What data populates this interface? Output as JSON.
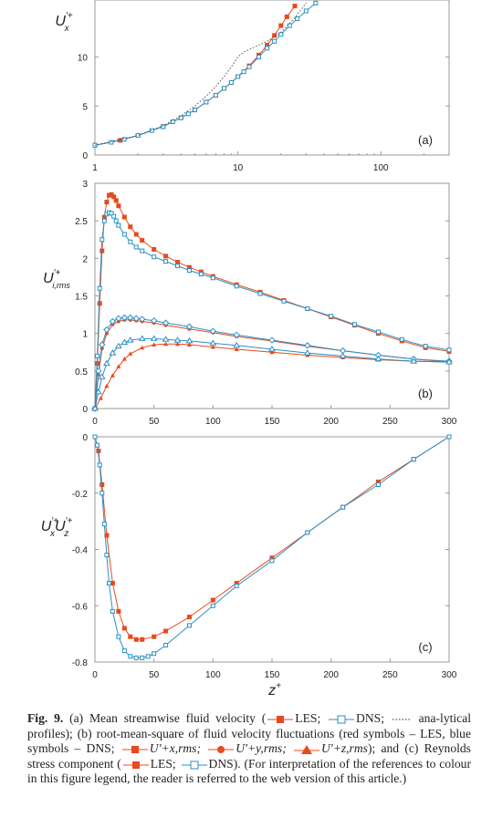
{
  "colors": {
    "les": "#e8491d",
    "dns": "#2a8fc4",
    "analytical": "#555555",
    "frame": "#999999"
  },
  "chart_data": [
    {
      "panel": "(a)",
      "type": "line",
      "xscale": "log",
      "xlim": [
        1,
        300
      ],
      "ylim": [
        0,
        16
      ],
      "xticks": [
        1,
        10,
        100
      ],
      "xtick_labels": [
        "1",
        "10",
        "100"
      ],
      "yticks": [
        0,
        5,
        10
      ],
      "ytick_labels": [
        "0",
        "5",
        "10"
      ],
      "ylabel": "U'+x",
      "series": [
        {
          "name": "LES",
          "marker": "square-filled",
          "x": [
            1,
            1.5,
            2,
            3,
            4,
            5,
            6,
            7,
            8,
            9,
            10,
            12,
            14,
            16,
            18,
            20,
            22,
            25
          ],
          "y": [
            1.0,
            1.5,
            2.0,
            2.9,
            3.8,
            4.6,
            5.4,
            6.1,
            6.8,
            7.4,
            8.0,
            9.1,
            10.2,
            11.2,
            12.2,
            13.2,
            14.1,
            15.2
          ]
        },
        {
          "name": "DNS",
          "marker": "square-open",
          "x": [
            1,
            1.3,
            1.6,
            2,
            2.5,
            3,
            3.5,
            4,
            4.5,
            5,
            6,
            7,
            8,
            9,
            10,
            11,
            12,
            14,
            16,
            18,
            20,
            23,
            26,
            30,
            35
          ],
          "y": [
            1.0,
            1.3,
            1.6,
            2.0,
            2.5,
            2.9,
            3.4,
            3.8,
            4.2,
            4.6,
            5.4,
            6.1,
            6.8,
            7.4,
            8.0,
            8.5,
            9.0,
            10.0,
            10.9,
            11.6,
            12.3,
            13.2,
            13.9,
            14.7,
            15.5
          ]
        },
        {
          "name": "analytical profiles",
          "marker": "none",
          "x": [
            1,
            2,
            3,
            4,
            5,
            6,
            7,
            8,
            9,
            10,
            11,
            13,
            16,
            20,
            25,
            30
          ],
          "y": [
            1,
            2,
            3,
            4,
            5,
            6,
            7,
            8,
            9,
            10,
            10.5,
            11.0,
            11.6,
            12.5,
            14.0,
            15.5
          ]
        }
      ]
    },
    {
      "panel": "(b)",
      "type": "line",
      "xlim": [
        0,
        300
      ],
      "ylim": [
        0,
        3
      ],
      "xticks": [
        0,
        50,
        100,
        150,
        200,
        250,
        300
      ],
      "xtick_labels": [
        "0",
        "50",
        "100",
        "150",
        "200",
        "250",
        "300"
      ],
      "yticks": [
        0,
        0.5,
        1,
        1.5,
        2,
        2.5,
        3
      ],
      "ytick_labels": [
        "0",
        "0.5",
        "1",
        "1.5",
        "2",
        "2.5",
        "3"
      ],
      "ylabel": "U'+i,rms",
      "series": [
        {
          "name": "LES U'+x,rms",
          "marker": "square-filled",
          "x": [
            0,
            2,
            4,
            6,
            8,
            10,
            12,
            14,
            16,
            18,
            20,
            25,
            30,
            35,
            40,
            50,
            60,
            70,
            80,
            90,
            100,
            120,
            140,
            160,
            180,
            200,
            220,
            240,
            260,
            280,
            300
          ],
          "y": [
            0,
            0.6,
            1.4,
            2.1,
            2.55,
            2.75,
            2.84,
            2.85,
            2.82,
            2.77,
            2.7,
            2.55,
            2.42,
            2.32,
            2.24,
            2.12,
            2.03,
            1.95,
            1.88,
            1.82,
            1.76,
            1.65,
            1.55,
            1.44,
            1.33,
            1.22,
            1.11,
            1.0,
            0.9,
            0.81,
            0.76
          ]
        },
        {
          "name": "DNS U'+x,rms",
          "marker": "square-open",
          "x": [
            0,
            2,
            4,
            6,
            8,
            10,
            12,
            14,
            16,
            18,
            20,
            25,
            30,
            35,
            40,
            50,
            60,
            70,
            80,
            90,
            100,
            120,
            140,
            160,
            180,
            200,
            220,
            240,
            260,
            280,
            300
          ],
          "y": [
            0,
            0.7,
            1.6,
            2.25,
            2.5,
            2.59,
            2.61,
            2.6,
            2.56,
            2.5,
            2.44,
            2.32,
            2.22,
            2.15,
            2.1,
            2.02,
            1.96,
            1.9,
            1.84,
            1.79,
            1.74,
            1.63,
            1.53,
            1.43,
            1.33,
            1.23,
            1.12,
            1.02,
            0.92,
            0.83,
            0.78
          ]
        },
        {
          "name": "LES U'+y,rms",
          "marker": "circle-filled",
          "x": [
            0,
            3,
            6,
            10,
            15,
            20,
            25,
            30,
            35,
            40,
            50,
            60,
            80,
            100,
            120,
            150,
            180,
            210,
            240,
            270,
            300
          ],
          "y": [
            0,
            0.45,
            0.8,
            1.0,
            1.12,
            1.16,
            1.18,
            1.18,
            1.17,
            1.16,
            1.14,
            1.11,
            1.06,
            1.01,
            0.96,
            0.9,
            0.83,
            0.77,
            0.71,
            0.66,
            0.62
          ]
        },
        {
          "name": "DNS U'+y,rms",
          "marker": "diamond-open",
          "x": [
            0,
            3,
            6,
            10,
            15,
            20,
            25,
            30,
            35,
            40,
            50,
            60,
            80,
            100,
            120,
            150,
            180,
            210,
            240,
            270,
            300
          ],
          "y": [
            0,
            0.5,
            0.85,
            1.05,
            1.16,
            1.2,
            1.21,
            1.21,
            1.2,
            1.19,
            1.17,
            1.14,
            1.09,
            1.03,
            0.98,
            0.91,
            0.84,
            0.77,
            0.71,
            0.66,
            0.63
          ]
        },
        {
          "name": "LES U'+z,rms",
          "marker": "triangle-filled",
          "x": [
            0,
            5,
            10,
            15,
            20,
            25,
            30,
            40,
            50,
            60,
            70,
            80,
            100,
            120,
            150,
            180,
            210,
            240,
            270,
            300
          ],
          "y": [
            0,
            0.14,
            0.3,
            0.44,
            0.56,
            0.66,
            0.73,
            0.81,
            0.85,
            0.86,
            0.86,
            0.85,
            0.82,
            0.79,
            0.75,
            0.71,
            0.68,
            0.65,
            0.63,
            0.62
          ]
        },
        {
          "name": "DNS U'+z,rms",
          "marker": "triangle-open",
          "x": [
            0,
            3,
            6,
            10,
            15,
            20,
            25,
            30,
            40,
            50,
            60,
            70,
            80,
            100,
            120,
            150,
            180,
            210,
            240,
            270,
            300
          ],
          "y": [
            0,
            0.22,
            0.42,
            0.6,
            0.74,
            0.83,
            0.88,
            0.91,
            0.93,
            0.93,
            0.92,
            0.91,
            0.9,
            0.87,
            0.84,
            0.79,
            0.74,
            0.7,
            0.66,
            0.63,
            0.62
          ]
        }
      ]
    },
    {
      "panel": "(c)",
      "type": "line",
      "xlim": [
        0,
        300
      ],
      "ylim": [
        -0.8,
        0
      ],
      "xticks": [
        0,
        50,
        100,
        150,
        200,
        250,
        300
      ],
      "xtick_labels": [
        "0",
        "50",
        "100",
        "150",
        "200",
        "250",
        "300"
      ],
      "yticks": [
        0,
        -0.2,
        -0.4,
        -0.6,
        -0.8
      ],
      "ytick_labels": [
        "0",
        "-0.2",
        "-0.4",
        "-0.6",
        "-0.8"
      ],
      "ylabel": "U'+x U'+z",
      "xlabel": "z+",
      "series": [
        {
          "name": "LES",
          "marker": "square-filled",
          "x": [
            0,
            3,
            6,
            10,
            15,
            20,
            25,
            30,
            35,
            40,
            50,
            60,
            80,
            100,
            120,
            150,
            180,
            210,
            240,
            270,
            300
          ],
          "y": [
            0,
            -0.05,
            -0.17,
            -0.35,
            -0.52,
            -0.62,
            -0.68,
            -0.71,
            -0.72,
            -0.72,
            -0.71,
            -0.69,
            -0.64,
            -0.58,
            -0.52,
            -0.43,
            -0.34,
            -0.25,
            -0.16,
            -0.08,
            0
          ]
        },
        {
          "name": "DNS",
          "marker": "square-open",
          "x": [
            0,
            2,
            4,
            6,
            8,
            10,
            12,
            15,
            20,
            25,
            30,
            35,
            40,
            45,
            50,
            60,
            80,
            100,
            120,
            150,
            180,
            210,
            240,
            270,
            300
          ],
          "y": [
            0,
            -0.03,
            -0.1,
            -0.2,
            -0.31,
            -0.42,
            -0.52,
            -0.62,
            -0.71,
            -0.76,
            -0.78,
            -0.785,
            -0.785,
            -0.78,
            -0.77,
            -0.74,
            -0.67,
            -0.6,
            -0.53,
            -0.44,
            -0.34,
            -0.25,
            -0.17,
            -0.08,
            0
          ]
        }
      ]
    }
  ],
  "caption": {
    "fig_label": "Fig. 9.",
    "part_a_1": " (a) Mean streamwise fluid velocity (",
    "les": "LES;",
    "dns": "DNS;",
    "part_a_2": " ana-lytical profiles); (b) root-mean-square of fluid velocity fluctuations (red symbols – LES, blue symbols – DNS;",
    "ux": "U'+x,rms;",
    "uy": "U'+y,rms;",
    "uz": "U'+z,rms",
    "part_c_1": "); and (c) Reynolds stress component (",
    "les2": "LES;",
    "dns2": "DNS",
    "part_c_2": "). (For interpretation of the references to colour in this figure legend, the reader is referred to the web version of this article.)"
  }
}
